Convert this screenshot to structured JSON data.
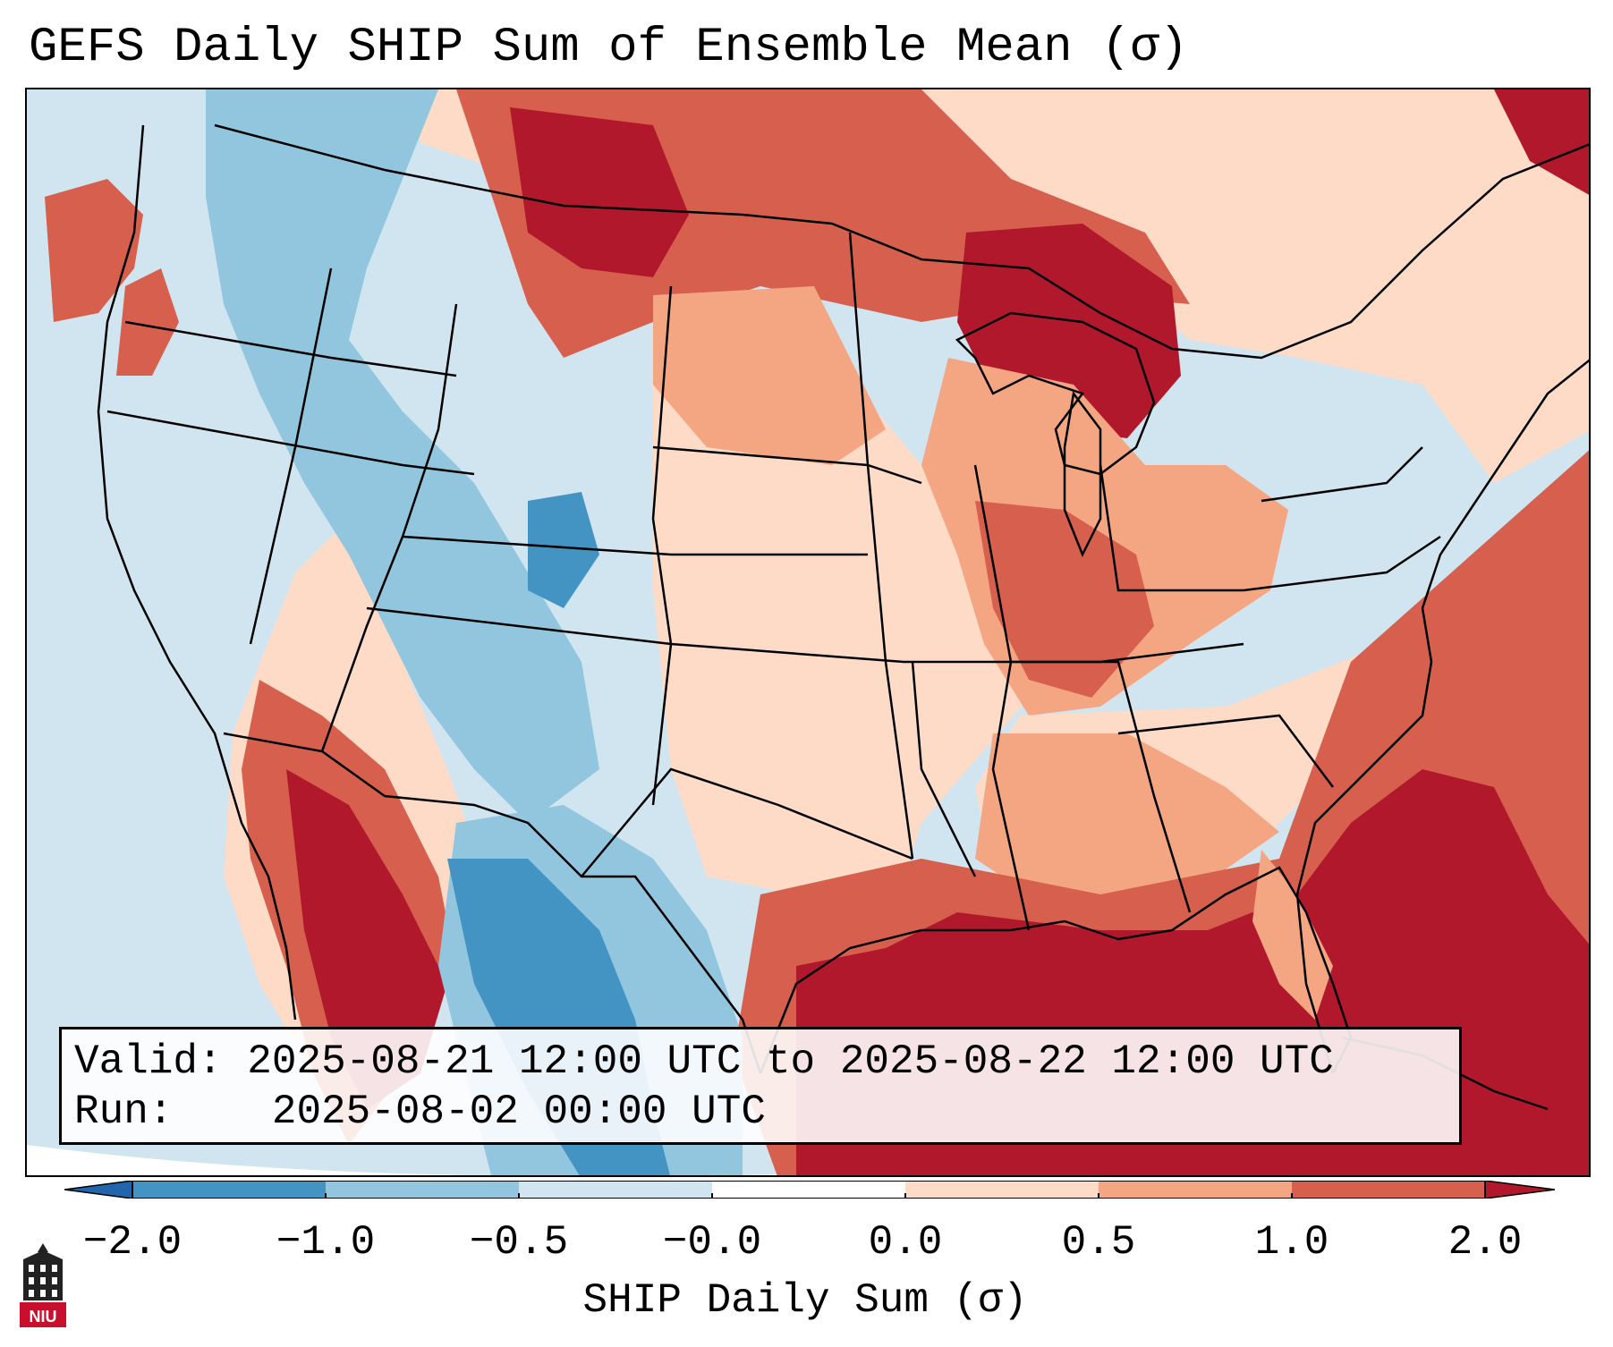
{
  "title": "GEFS Daily SHIP Sum of Ensemble Mean (σ)",
  "info": {
    "valid_label": "Valid:",
    "valid_value": "2025-08-21 12:00 UTC to 2025-08-22 12:00 UTC",
    "run_label": "Run:",
    "run_value": "2025-08-02 00:00 UTC"
  },
  "colorbar": {
    "label": "SHIP Daily Sum (σ)",
    "ticks": [
      "−2.0",
      "−1.0",
      "−0.5",
      "−0.0",
      "0.0",
      "0.5",
      "1.0",
      "2.0"
    ],
    "colors": {
      "below_min": "#2166ac",
      "bin_m2_m1": "#4393c3",
      "bin_m1_m05": "#92c5de",
      "bin_m05_0": "#d1e5f0",
      "bin_0": "#ffffff",
      "bin_0_05": "#fddbc7",
      "bin_05_1": "#f4a582",
      "bin_1_2": "#d6604d",
      "above_max": "#b2182b"
    }
  },
  "logo": {
    "text": "NIU",
    "icon": "niu-tower-logo-icon",
    "color": "#c8102e"
  }
}
